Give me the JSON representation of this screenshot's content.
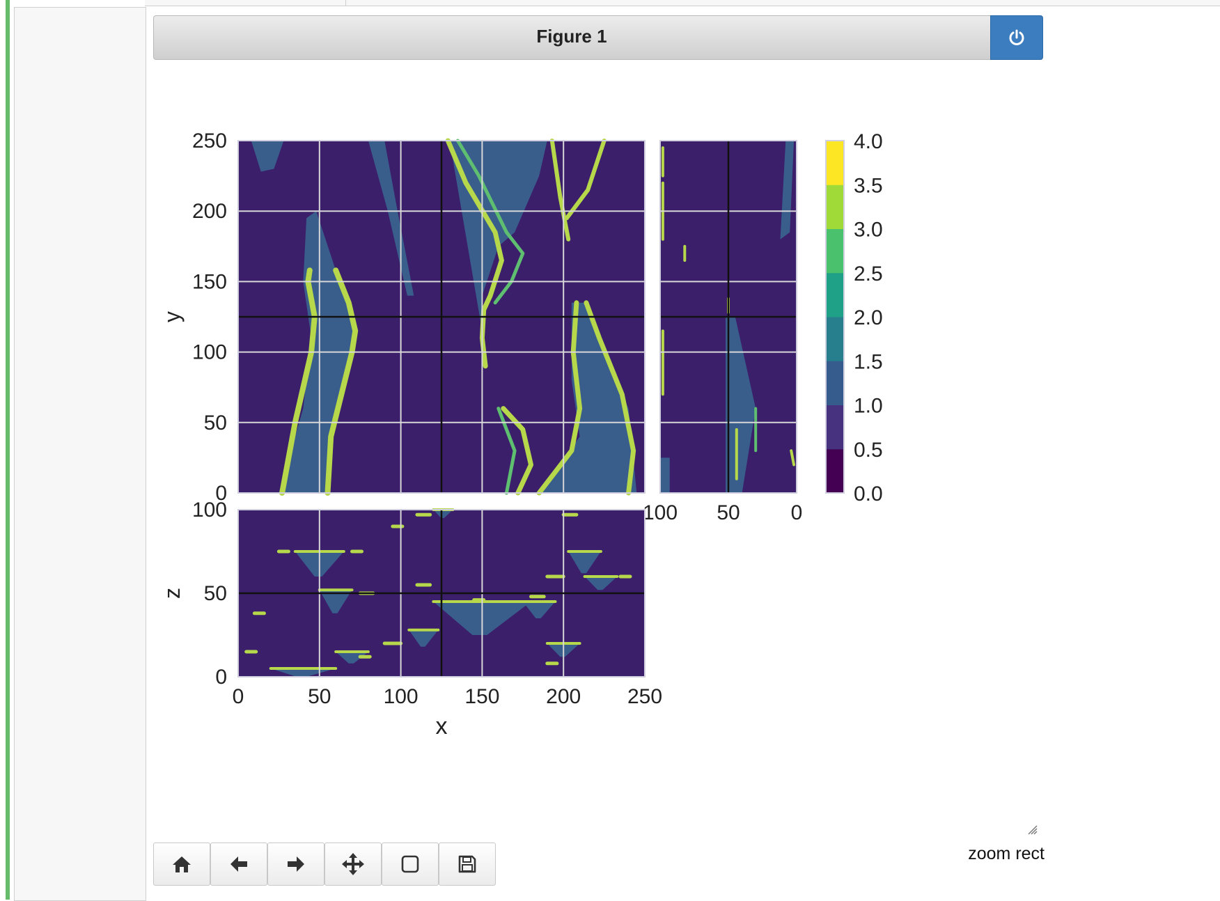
{
  "window": {
    "title": "Figure 1",
    "power_icon": "power-icon"
  },
  "toolbar": {
    "buttons": [
      {
        "name": "home-button",
        "icon": "home-icon"
      },
      {
        "name": "back-button",
        "icon": "arrow-left-icon"
      },
      {
        "name": "forward-button",
        "icon": "arrow-right-icon"
      },
      {
        "name": "pan-button",
        "icon": "move-arrows-icon"
      },
      {
        "name": "zoom-button",
        "icon": "square-icon"
      },
      {
        "name": "save-button",
        "icon": "floppy-disk-icon"
      }
    ]
  },
  "status": {
    "message": "zoom rect"
  },
  "colors": {
    "background_level": "#3b1f6b",
    "viridis": [
      "#440154",
      "#46327e",
      "#365c8d",
      "#277f8e",
      "#1fa187",
      "#4ac16d",
      "#a0da39",
      "#fde725"
    ],
    "accent_button": "#3c7dbf",
    "cell_accent": "#66bb6a"
  },
  "chart_data": [
    {
      "type": "heatmap",
      "panel": "xy-slice",
      "xlabel": "",
      "ylabel": "y",
      "xlim": [
        0,
        250
      ],
      "ylim": [
        0,
        250
      ],
      "yticks": [
        "0",
        "50",
        "100",
        "150",
        "200",
        "250"
      ],
      "crosshair": {
        "x": 125,
        "y": 125
      },
      "grid": true
    },
    {
      "type": "heatmap",
      "panel": "zy-slice",
      "xlabel": "",
      "ylabel": "",
      "xlim": [
        100,
        0
      ],
      "ylim": [
        0,
        250
      ],
      "xticks": [
        "100",
        "50",
        "0"
      ],
      "crosshair": {
        "x": 50,
        "y": 125
      },
      "grid": true
    },
    {
      "type": "heatmap",
      "panel": "xz-slice",
      "xlabel": "x",
      "ylabel": "z",
      "xlim": [
        0,
        250
      ],
      "ylim": [
        0,
        100
      ],
      "xticks": [
        "0",
        "50",
        "100",
        "150",
        "200",
        "250"
      ],
      "yticks": [
        "0",
        "50",
        "100"
      ],
      "crosshair": {
        "x": 125,
        "z": 50
      },
      "grid": true
    },
    {
      "type": "colorbar",
      "vmin": 0.0,
      "vmax": 4.0,
      "ticks": [
        "0.0",
        "0.5",
        "1.0",
        "1.5",
        "2.0",
        "2.5",
        "3.0",
        "3.5",
        "4.0"
      ],
      "levels": 8
    }
  ]
}
